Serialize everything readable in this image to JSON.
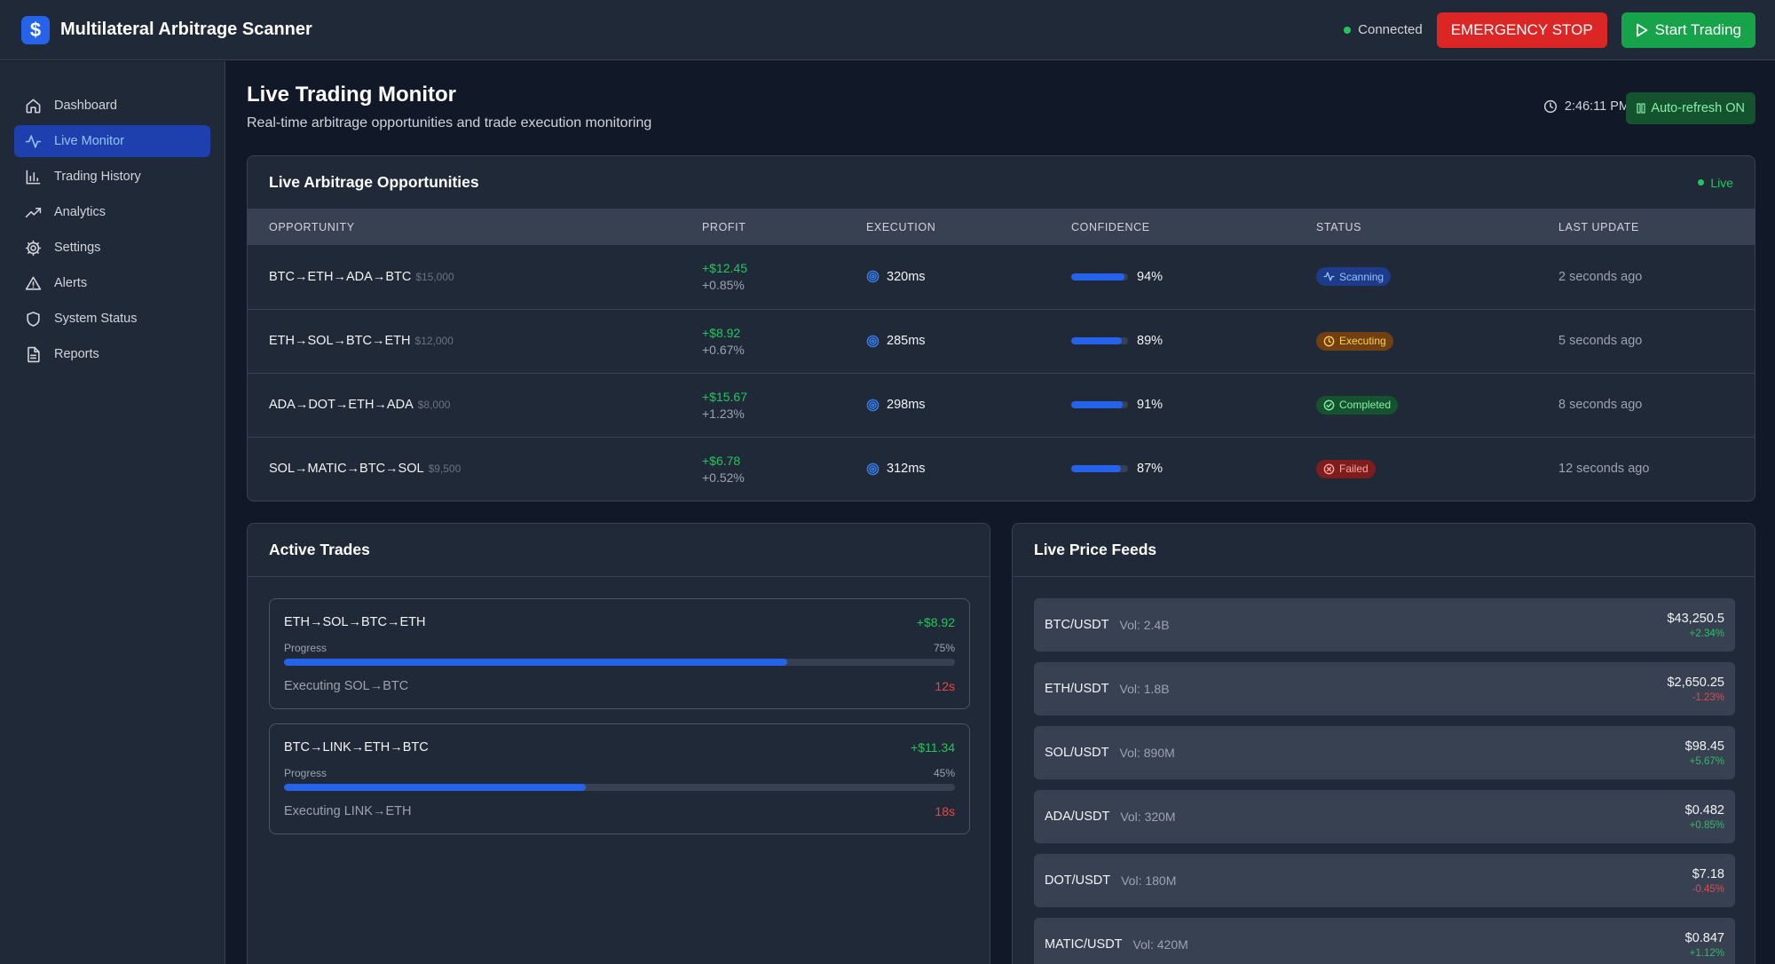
{
  "header": {
    "title": "Multilateral Arbitrage Scanner",
    "logo_glyph": "$",
    "status": "Connected",
    "emergency_label": "EMERGENCY STOP",
    "start_label": "Start Trading"
  },
  "sidebar": {
    "items": [
      {
        "label": "Dashboard",
        "icon": "home-icon",
        "active": false
      },
      {
        "label": "Live Monitor",
        "icon": "activity-icon",
        "active": true
      },
      {
        "label": "Trading History",
        "icon": "bar-chart-icon",
        "active": false
      },
      {
        "label": "Analytics",
        "icon": "trending-up-icon",
        "active": false
      },
      {
        "label": "Settings",
        "icon": "gear-icon",
        "active": false
      },
      {
        "label": "Alerts",
        "icon": "alert-triangle-icon",
        "active": false
      },
      {
        "label": "System Status",
        "icon": "shield-icon",
        "active": false
      },
      {
        "label": "Reports",
        "icon": "file-text-icon",
        "active": false
      }
    ]
  },
  "main": {
    "title": "Live Trading Monitor",
    "subtitle": "Real-time arbitrage opportunities and trade execution monitoring",
    "time": "2:46:11 PM",
    "auto_refresh": "Auto-refresh ON"
  },
  "opportunities": {
    "title": "Live Arbitrage Opportunities",
    "live_label": "Live",
    "columns": [
      "OPPORTUNITY",
      "PROFIT",
      "EXECUTION",
      "CONFIDENCE",
      "STATUS",
      "LAST UPDATE"
    ],
    "rows": [
      {
        "route": "BTC→ETH→ADA→BTC",
        "amount": "$15,000",
        "profit": "+$12.45",
        "profit_pct": "+0.85%",
        "execution": "320ms",
        "confidence": "94%",
        "confidence_value": 94,
        "status": "Scanning",
        "status_kind": "scan",
        "updated": "2 seconds ago"
      },
      {
        "route": "ETH→SOL→BTC→ETH",
        "amount": "$12,000",
        "profit": "+$8.92",
        "profit_pct": "+0.67%",
        "execution": "285ms",
        "confidence": "89%",
        "confidence_value": 89,
        "status": "Executing",
        "status_kind": "exec",
        "updated": "5 seconds ago"
      },
      {
        "route": "ADA→DOT→ETH→ADA",
        "amount": "$8,000",
        "profit": "+$15.67",
        "profit_pct": "+1.23%",
        "execution": "298ms",
        "confidence": "91%",
        "confidence_value": 91,
        "status": "Completed",
        "status_kind": "done",
        "updated": "8 seconds ago"
      },
      {
        "route": "SOL→MATIC→BTC→SOL",
        "amount": "$9,500",
        "profit": "+$6.78",
        "profit_pct": "+0.52%",
        "execution": "312ms",
        "confidence": "87%",
        "confidence_value": 87,
        "status": "Failed",
        "status_kind": "fail",
        "updated": "12 seconds ago"
      }
    ]
  },
  "active_trades": {
    "title": "Active Trades",
    "items": [
      {
        "route": "ETH→SOL→BTC→ETH",
        "profit": "+$8.92",
        "progress_label": "Progress",
        "progress_text": "75%",
        "progress": 75,
        "step": "Executing SOL→BTC",
        "time_left": "12s"
      },
      {
        "route": "BTC→LINK→ETH→BTC",
        "profit": "+$11.34",
        "progress_label": "Progress",
        "progress_text": "45%",
        "progress": 45,
        "step": "Executing LINK→ETH",
        "time_left": "18s"
      }
    ]
  },
  "price_feeds": {
    "title": "Live Price Feeds",
    "items": [
      {
        "pair": "BTC/USDT",
        "volume": "Vol: 2.4B",
        "price": "$43,250.5",
        "change": "+2.34%",
        "direction": "up"
      },
      {
        "pair": "ETH/USDT",
        "volume": "Vol: 1.8B",
        "price": "$2,650.25",
        "change": "-1.23%",
        "direction": "down"
      },
      {
        "pair": "SOL/USDT",
        "volume": "Vol: 890M",
        "price": "$98.45",
        "change": "+5.67%",
        "direction": "up"
      },
      {
        "pair": "ADA/USDT",
        "volume": "Vol: 320M",
        "price": "$0.482",
        "change": "+0.85%",
        "direction": "up"
      },
      {
        "pair": "DOT/USDT",
        "volume": "Vol: 180M",
        "price": "$7.18",
        "change": "-0.45%",
        "direction": "down"
      },
      {
        "pair": "MATIC/USDT",
        "volume": "Vol: 420M",
        "price": "$0.847",
        "change": "+1.12%",
        "direction": "up"
      }
    ]
  },
  "colors": {
    "accent": "#2563eb",
    "positive": "#22c55e",
    "negative": "#ef4444",
    "danger": "#dc2626",
    "success": "#16a34a",
    "background": "#111827",
    "panel": "#1f2937"
  }
}
